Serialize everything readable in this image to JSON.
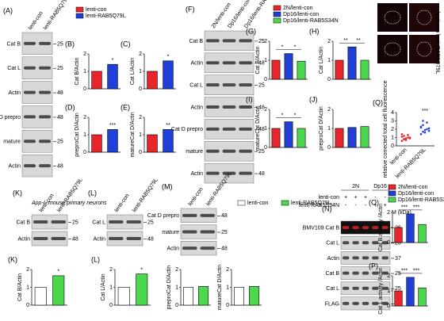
{
  "legends": [
    {
      "items": [
        {
          "name": "lenti-con",
          "color": "#e8262a"
        },
        {
          "name": "lenti-RAB5Q79L",
          "color": "#1f3fd8"
        }
      ]
    },
    {
      "items": [
        {
          "name": "2N/lenti-con",
          "color": "#e8262a"
        },
        {
          "name": "Dp16/lenti-con",
          "color": "#1f3fd8"
        },
        {
          "name": "Dp16/lenti-RAB5S34N",
          "color": "#4cd84c"
        }
      ]
    },
    {
      "header": "App-/- mouse primary neurons",
      "items": [
        {
          "name": "lenti-con",
          "color": "#ffffff"
        },
        {
          "name": "lenti-RAB5Q79L",
          "color": "#4cd84c"
        }
      ]
    },
    {
      "items": [
        {
          "name": "2N/lenti-con",
          "color": "#e8262a"
        },
        {
          "name": "Dp16/lenti-con",
          "color": "#1f3fd8"
        },
        {
          "name": "Dp16/lenti-RAB5S34N",
          "color": "#4cd84c"
        }
      ]
    }
  ],
  "blots": [
    {
      "label": "(A)",
      "lanes": [
        "lenti-con",
        "lenti-RAB5Q79L"
      ],
      "rows": [
        {
          "name": "Cat B",
          "marker": "25"
        },
        {
          "name": "Cat L",
          "marker": "25"
        },
        {
          "name": "Actin",
          "marker": "48"
        },
        {
          "name": "Cat D prepro",
          "marker": "48"
        },
        {
          "name": "mature",
          "marker": "25"
        },
        {
          "name": "Actin",
          "marker": "48"
        }
      ]
    },
    {
      "label": "(F)",
      "lanes": [
        "2N/lenti-con",
        "Dp16/lenti-con",
        "Dp16/lenti-RAB5S34N"
      ],
      "rows": [
        {
          "name": "Cat B",
          "marker": "25"
        },
        {
          "name": "Actin",
          "marker": "48"
        },
        {
          "name": "Cat L",
          "marker": "25"
        },
        {
          "name": "Actin",
          "marker": "48"
        },
        {
          "name": "Cat D prepro",
          "marker": "48"
        },
        {
          "name": "mature",
          "marker": "25"
        },
        {
          "name": "Actin",
          "marker": "48"
        }
      ]
    },
    {
      "label": "(K)",
      "lanes": [
        "lenti-con",
        "lenti-RAB5Q79L"
      ],
      "rows": [
        {
          "name": "Cat B",
          "marker": "25"
        },
        {
          "name": "Actin",
          "marker": "48"
        }
      ]
    },
    {
      "label": "(L)",
      "lanes": [
        "lenti-con",
        "lenti-RAB5Q79L"
      ],
      "rows": [
        {
          "name": "Cat L",
          "marker": "25"
        },
        {
          "name": "Actin",
          "marker": "48"
        }
      ]
    },
    {
      "label": "(M)",
      "lanes": [
        "lenti-con",
        "lenti-RAB5Q79L"
      ],
      "rows": [
        {
          "name": "Cat D prepro",
          "marker": "48"
        },
        {
          "name": "mature",
          "marker": "25"
        },
        {
          "name": "Actin",
          "marker": "48"
        }
      ]
    },
    {
      "label": "(N)",
      "lanes": [
        "",
        "",
        "",
        "",
        ""
      ],
      "rows": [
        {
          "name": "BMV109 Cat B",
          "marker": "25"
        },
        {
          "name": "Cat L",
          "marker": "20"
        },
        {
          "name": "Actin",
          "marker": "37"
        },
        {
          "name": "Cat B",
          "marker": "25"
        },
        {
          "name": "Cat L",
          "marker": "25"
        },
        {
          "name": "FLAG",
          "marker": "25"
        }
      ]
    }
  ],
  "gel_n": {
    "groups": [
      "2N",
      "Dp16"
    ],
    "treatments": [
      {
        "name": "lenti-con",
        "signs": [
          "+",
          "+",
          "+",
          "-",
          "-"
        ]
      },
      {
        "name": "lenti-RAB5S34N",
        "signs": [
          "-",
          "-",
          "-",
          "+",
          "+"
        ]
      }
    ],
    "marker_lane": "M (kDa)"
  },
  "chart_data": [
    {
      "label": "(B)",
      "type": "bar",
      "ylabel": "Cat B/Actin",
      "colors": [
        "#e8262a",
        "#1f3fd8"
      ],
      "values": [
        1,
        1.4
      ],
      "ylim": [
        0,
        2
      ],
      "yticks": [
        0,
        1,
        2
      ],
      "annotations": [
        "*"
      ]
    },
    {
      "label": "(C)",
      "type": "bar",
      "ylabel": "Cat L/Actin",
      "colors": [
        "#e8262a",
        "#1f3fd8"
      ],
      "values": [
        1,
        1.6
      ],
      "ylim": [
        0,
        2
      ],
      "yticks": [
        0,
        1,
        2
      ],
      "annotations": [
        "*"
      ]
    },
    {
      "label": "(D)",
      "type": "bar",
      "ylabel": "preproCat D/Actin",
      "colors": [
        "#e8262a",
        "#1f3fd8"
      ],
      "values": [
        1,
        1.3
      ],
      "ylim": [
        0,
        2
      ],
      "yticks": [
        0,
        1,
        2
      ],
      "annotations": [
        "***"
      ]
    },
    {
      "label": "(E)",
      "type": "bar",
      "ylabel": "matureCat D/Actin",
      "colors": [
        "#e8262a",
        "#1f3fd8"
      ],
      "values": [
        1,
        1.3
      ],
      "ylim": [
        0,
        2
      ],
      "yticks": [
        0,
        1,
        2
      ],
      "annotations": [
        "**"
      ]
    },
    {
      "label": "(G)",
      "type": "bar",
      "ylabel": "Cat B/Actin",
      "colors": [
        "#e8262a",
        "#1f3fd8",
        "#4cd84c"
      ],
      "values": [
        1,
        1.35,
        0.95
      ],
      "ylim": [
        0,
        2
      ],
      "yticks": [
        0,
        1,
        2
      ],
      "annotations": [
        "*",
        "*"
      ]
    },
    {
      "label": "(H)",
      "type": "bar",
      "ylabel": "Cat L/Actin",
      "colors": [
        "#e8262a",
        "#1f3fd8",
        "#4cd84c"
      ],
      "values": [
        1,
        1.7,
        1
      ],
      "ylim": [
        0,
        2
      ],
      "yticks": [
        0,
        1,
        2
      ],
      "annotations": [
        "**",
        "**"
      ]
    },
    {
      "label": "(I)",
      "type": "bar",
      "ylabel": "matureCat D/Actin",
      "colors": [
        "#e8262a",
        "#1f3fd8",
        "#4cd84c"
      ],
      "values": [
        1,
        1.35,
        1
      ],
      "ylim": [
        0,
        2
      ],
      "yticks": [
        0,
        1,
        2
      ],
      "annotations": [
        "*",
        "*"
      ]
    },
    {
      "label": "(J)",
      "type": "bar",
      "ylabel": "preproCat D/Actin",
      "colors": [
        "#e8262a",
        "#1f3fd8",
        "#4cd84c"
      ],
      "values": [
        1,
        1.05,
        1.1
      ],
      "ylim": [
        0,
        2
      ],
      "yticks": [
        0,
        1,
        2
      ],
      "annotations": []
    },
    {
      "label": "(K)",
      "type": "bar",
      "ylabel": "Cat B/Actin",
      "colors": [
        "#ffffff",
        "#4cd84c"
      ],
      "values": [
        1,
        1.65
      ],
      "ylim": [
        0,
        2
      ],
      "yticks": [
        0,
        1,
        2
      ],
      "annotations": [
        "*"
      ]
    },
    {
      "label": "(L)",
      "type": "bar",
      "ylabel": "Cat L/Actin",
      "colors": [
        "#ffffff",
        "#4cd84c"
      ],
      "values": [
        1,
        1.75
      ],
      "ylim": [
        0,
        2
      ],
      "yticks": [
        0,
        1,
        2
      ],
      "annotations": [
        "*"
      ]
    },
    {
      "type": "bar",
      "ylabel": "preproCat D/Actin",
      "colors": [
        "#ffffff",
        "#4cd84c"
      ],
      "values": [
        1,
        1.05
      ],
      "ylim": [
        0,
        2
      ],
      "yticks": [
        0,
        1,
        2
      ],
      "annotations": []
    },
    {
      "type": "bar",
      "ylabel": "matureCat D/Actin",
      "colors": [
        "#ffffff",
        "#4cd84c"
      ],
      "values": [
        1,
        1.05
      ],
      "ylim": [
        0,
        2
      ],
      "yticks": [
        0,
        1,
        2
      ],
      "annotations": []
    },
    {
      "label": "(O)",
      "type": "bar",
      "ylabel": "Cat B activity /Actin",
      "colors": [
        "#e8262a",
        "#1f3fd8",
        "#4cd84c"
      ],
      "values": [
        1,
        1.9,
        1.2
      ],
      "ylim": [
        0,
        2
      ],
      "yticks": [
        0,
        1,
        2
      ],
      "annotations": [
        "***",
        "***"
      ]
    },
    {
      "label": "(P)",
      "type": "bar",
      "ylabel": "Cat L activity /Actin",
      "colors": [
        "#e8262a",
        "#1f3fd8",
        "#4cd84c"
      ],
      "values": [
        1,
        1.9,
        1.2
      ],
      "ylim": [
        0,
        2
      ],
      "yticks": [
        0,
        1,
        2
      ],
      "annotations": [
        "***",
        "***"
      ]
    },
    {
      "label": "(Q)",
      "type": "strip",
      "ylabel": "relative corrected total cell fluorescence",
      "categories": [
        "lenti-con",
        "lenti-RAB5Q79L"
      ],
      "image_labels": [
        "lenti-con",
        "lenti-RAB5Q79L"
      ],
      "series": [
        {
          "name": "lenti-con",
          "color": "#e8262a",
          "values": [
            0.6,
            0.8,
            0.9,
            1,
            1,
            1.1,
            1.2,
            0.7,
            1.3,
            0.9,
            1.4,
            0.8
          ]
        },
        {
          "name": "lenti-RAB5Q79L",
          "color": "#1f3fd8",
          "values": [
            1.4,
            1.7,
            1.9,
            2,
            2.1,
            2.3,
            2.5,
            1.6,
            2.8,
            1.8,
            2.2,
            3
          ]
        }
      ],
      "ylim": [
        0,
        4
      ],
      "yticks": [
        0,
        1,
        2,
        3,
        4
      ],
      "annotations": [
        "***"
      ]
    }
  ]
}
